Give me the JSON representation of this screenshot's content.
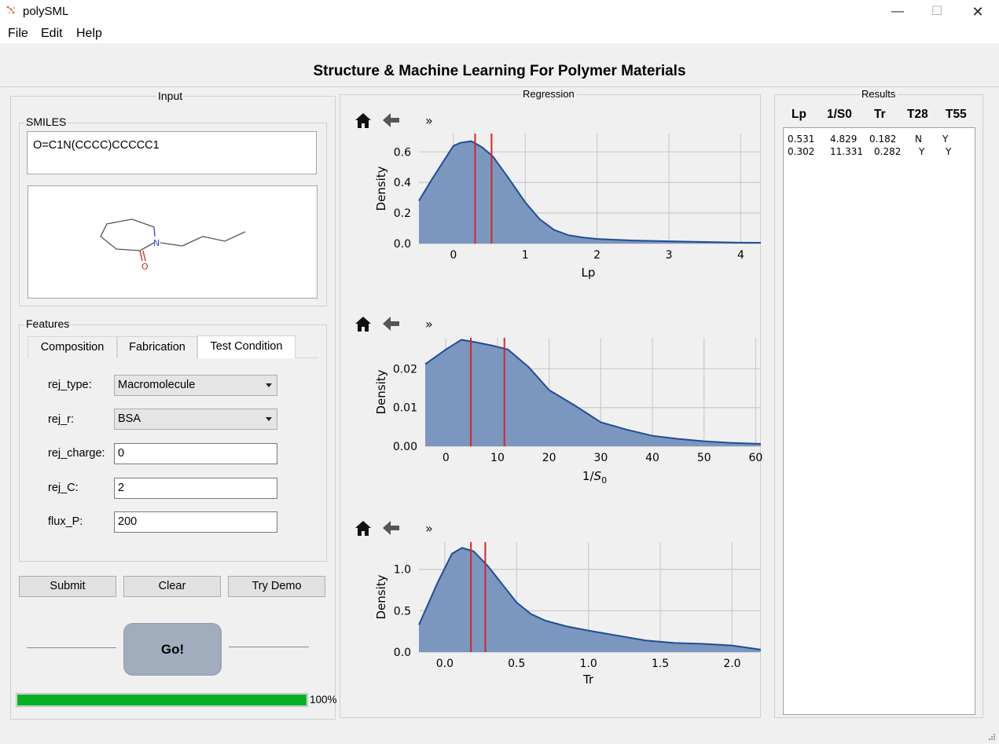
{
  "window": {
    "title": "polySML",
    "minimize": "—",
    "maximize": "☐",
    "close": "✕"
  },
  "menu": [
    "File",
    "Edit",
    "Help"
  ],
  "header": {
    "title": "Structure & Machine Learning For Polymer Materials"
  },
  "input_panel": {
    "title": "Input",
    "smiles": {
      "label": "SMILES",
      "value": "O=C1N(CCCC)CCCCC1"
    },
    "molecule": {
      "atoms": [
        "N",
        "O"
      ]
    },
    "features": {
      "title": "Features",
      "tabs": [
        {
          "label": "Composition",
          "active": false
        },
        {
          "label": "Fabrication",
          "active": false
        },
        {
          "label": "Test Condition",
          "active": true
        }
      ],
      "fields": {
        "rej_type": {
          "label": "rej_type:",
          "value": "Macromolecule"
        },
        "rej_r": {
          "label": "rej_r:",
          "value": "BSA"
        },
        "rej_charge": {
          "label": "rej_charge:",
          "value": "0"
        },
        "rej_C": {
          "label": "rej_C:",
          "value": "2"
        },
        "flux_P": {
          "label": "flux_P:",
          "value": "200"
        }
      }
    },
    "buttons": {
      "submit": "Submit",
      "clear": "Clear",
      "demo": "Try Demo",
      "go": "Go!"
    },
    "progress": {
      "value": 100,
      "label": "100%",
      "color": "#06b025"
    }
  },
  "regression": {
    "title": "Regression",
    "toolbar": {
      "home": "home-icon",
      "back": "back-arrow-icon",
      "more": "»"
    }
  },
  "chart_data": [
    {
      "type": "area",
      "xlabel": "Lp",
      "ylabel": "Density",
      "xlim": [
        -0.48,
        4.28
      ],
      "ylim": [
        0,
        0.72
      ],
      "xticks": [
        0,
        1,
        2,
        3,
        4
      ],
      "yticks": [
        0.0,
        0.2,
        0.4,
        0.6
      ],
      "ytick_labels": [
        "0.0",
        "0.2",
        "0.4",
        "0.6"
      ],
      "x": [
        -0.48,
        -0.3,
        -0.15,
        0.0,
        0.1,
        0.25,
        0.4,
        0.55,
        0.75,
        1.0,
        1.2,
        1.4,
        1.6,
        1.8,
        2.0,
        2.5,
        3.0,
        3.5,
        4.0,
        4.28
      ],
      "y": [
        0.28,
        0.42,
        0.53,
        0.64,
        0.66,
        0.67,
        0.63,
        0.57,
        0.44,
        0.27,
        0.16,
        0.09,
        0.055,
        0.04,
        0.03,
        0.02,
        0.015,
        0.01,
        0.006,
        0.005
      ],
      "vlines": [
        0.302,
        0.531
      ],
      "grid": true,
      "fill_color": "#7b96bf",
      "line_color": "#1f4e96",
      "marker_color": "#d62728"
    },
    {
      "type": "area",
      "xlabel": "1/S_0",
      "ylabel": "Density",
      "xlim": [
        -4,
        61
      ],
      "ylim": [
        0,
        0.028
      ],
      "xticks": [
        0,
        10,
        20,
        30,
        40,
        50,
        60
      ],
      "yticks": [
        0.0,
        0.01,
        0.02
      ],
      "ytick_labels": [
        "0.00",
        "0.01",
        "0.02"
      ],
      "x": [
        -4,
        0,
        3,
        6,
        9,
        12,
        16,
        20,
        25,
        30,
        35,
        40,
        45,
        50,
        55,
        61
      ],
      "y": [
        0.0212,
        0.025,
        0.0275,
        0.0268,
        0.026,
        0.025,
        0.0205,
        0.0145,
        0.0105,
        0.0062,
        0.0043,
        0.0027,
        0.0019,
        0.0013,
        0.0009,
        0.0006
      ],
      "vlines": [
        4.829,
        11.331
      ],
      "grid": true,
      "fill_color": "#7b96bf",
      "line_color": "#1f4e96",
      "marker_color": "#d62728"
    },
    {
      "type": "area",
      "xlabel": "Tr",
      "ylabel": "Density",
      "xlim": [
        -0.18,
        2.2
      ],
      "ylim": [
        0,
        1.33
      ],
      "xticks": [
        0.0,
        0.5,
        1.0,
        1.5,
        2.0
      ],
      "xtick_labels": [
        "0.0",
        "0.5",
        "1.0",
        "1.5",
        "2.0"
      ],
      "yticks": [
        0.0,
        0.5,
        1.0
      ],
      "ytick_labels": [
        "0.0",
        "0.5",
        "1.0"
      ],
      "x": [
        -0.18,
        -0.05,
        0.05,
        0.12,
        0.2,
        0.3,
        0.4,
        0.5,
        0.6,
        0.7,
        0.85,
        1.0,
        1.2,
        1.4,
        1.6,
        1.8,
        2.0,
        2.2
      ],
      "y": [
        0.33,
        0.84,
        1.19,
        1.26,
        1.22,
        1.04,
        0.82,
        0.6,
        0.46,
        0.38,
        0.31,
        0.26,
        0.2,
        0.14,
        0.11,
        0.1,
        0.08,
        0.03
      ],
      "vlines": [
        0.182,
        0.282
      ],
      "grid": true,
      "fill_color": "#7b96bf",
      "line_color": "#1f4e96",
      "marker_color": "#d62728"
    }
  ],
  "results": {
    "title": "Results",
    "columns": [
      "Lp",
      "1/S0",
      "Tr",
      "T28",
      "T55"
    ],
    "rows": [
      [
        "0.531",
        "4.829",
        "0.182",
        "N",
        "Y"
      ],
      [
        "0.302",
        "11.331",
        "0.282",
        "Y",
        "Y"
      ]
    ]
  }
}
